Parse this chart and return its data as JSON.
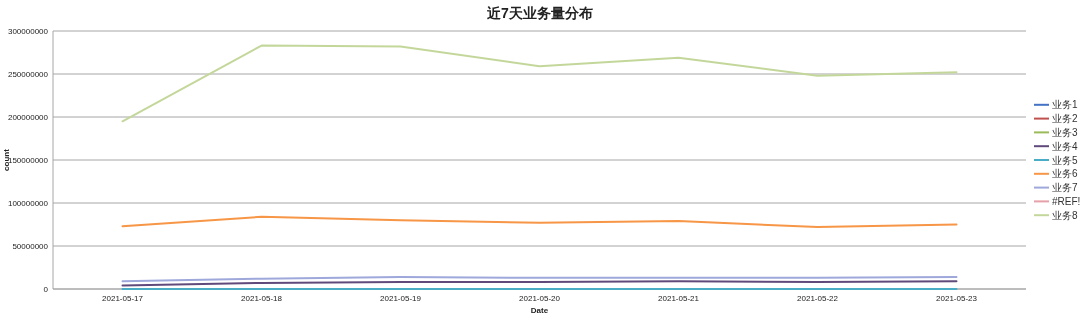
{
  "chart_data": {
    "type": "line",
    "title": "近7天业务量分布",
    "xlabel": "Date",
    "ylabel": "count",
    "categories": [
      "2021-05-17",
      "2021-05-18",
      "2021-05-19",
      "2021-05-20",
      "2021-05-21",
      "2021-05-22",
      "2021-05-23"
    ],
    "series": [
      {
        "name": "业务1",
        "color": "#4472c4",
        "values": [
          null,
          null,
          null,
          null,
          null,
          null,
          null
        ]
      },
      {
        "name": "业务2",
        "color": "#c0504d",
        "values": [
          null,
          null,
          null,
          null,
          null,
          null,
          null
        ]
      },
      {
        "name": "业务3",
        "color": "#9bbb59",
        "values": [
          null,
          null,
          null,
          null,
          null,
          null,
          null
        ]
      },
      {
        "name": "业务4",
        "color": "#604a7b",
        "values": [
          4000000,
          7000000,
          8000000,
          8000000,
          9000000,
          8000000,
          9000000
        ]
      },
      {
        "name": "业务5",
        "color": "#4bacc6",
        "values": [
          0,
          0,
          0,
          0,
          0,
          0,
          0
        ]
      },
      {
        "name": "业务6",
        "color": "#f79646",
        "values": [
          73000000,
          84000000,
          80000000,
          77000000,
          79000000,
          72000000,
          75000000
        ]
      },
      {
        "name": "业务7",
        "color": "#9ea8db",
        "values": [
          9000000,
          12000000,
          14000000,
          13000000,
          13000000,
          13000000,
          14000000
        ]
      },
      {
        "name": "#REF!",
        "color": "#e6a0a8",
        "values": [
          null,
          null,
          null,
          null,
          null,
          null,
          null
        ]
      },
      {
        "name": "业务8",
        "color": "#c4d79b",
        "values": [
          195000000,
          283000000,
          282000000,
          259000000,
          269000000,
          248000000,
          252000000
        ]
      }
    ],
    "ylim": [
      0,
      300000000
    ],
    "yticks": [
      0,
      50000000,
      100000000,
      150000000,
      200000000,
      250000000,
      300000000
    ],
    "grid": "y",
    "legend": "right"
  }
}
